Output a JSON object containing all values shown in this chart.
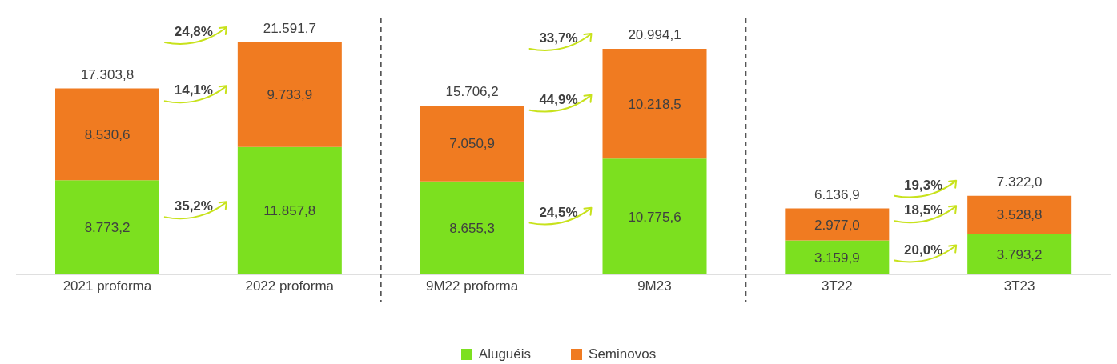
{
  "chart_data": {
    "type": "bar",
    "stacked": true,
    "categories": [
      "2021 proforma",
      "2022 proforma",
      "9M22 proforma",
      "9M23",
      "3T22",
      "3T23"
    ],
    "series": [
      {
        "name": "Aluguéis",
        "color": "#7ce01f",
        "values": [
          8773.2,
          11857.8,
          8655.3,
          10775.6,
          3159.9,
          3793.2
        ],
        "value_labels": [
          "8.773,2",
          "11.857,8",
          "8.655,3",
          "10.775,6",
          "3.159,9",
          "3.793,2"
        ]
      },
      {
        "name": "Seminovos",
        "color": "#f07b21",
        "values": [
          8530.6,
          9733.9,
          7050.9,
          10218.5,
          2977.0,
          3528.8
        ],
        "value_labels": [
          "8.530,6",
          "9.733,9",
          "7.050,9",
          "10.218,5",
          "2.977,0",
          "3.528,8"
        ]
      }
    ],
    "totals": [
      "17.303,8",
      "21.591,7",
      "15.706,2",
      "20.994,1",
      "6.136,9",
      "7.322,0"
    ],
    "legend": "bottom",
    "grid": false,
    "annotations": [
      "24,8%",
      "14,1%",
      "35,2%",
      "33,7%",
      "44,9%",
      "24,5%",
      "19,3%",
      "18,5%",
      "20,0%"
    ]
  }
}
